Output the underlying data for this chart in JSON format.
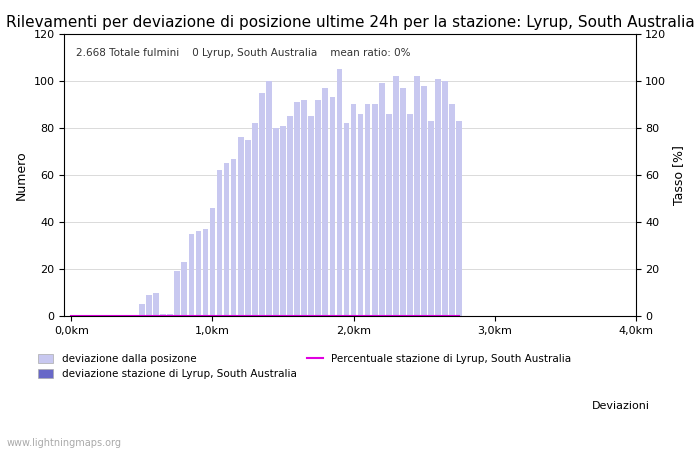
{
  "title": "Rilevamenti per deviazione di posizione ultime 24h per la stazione: Lyrup, South Australia",
  "subtitle": "2.668 Totale fulmini    0 Lyrup, South Australia    mean ratio: 0%",
  "ylabel_left": "Numero",
  "ylabel_right": "Tasso [%]",
  "xlabel_bottom": "Deviazioni",
  "watermark": "www.lightningmaps.org",
  "ylim": [
    0,
    120
  ],
  "xtick_labels": [
    "0,0km",
    "1,0km",
    "2,0km",
    "3,0km",
    "4,0km"
  ],
  "xtick_positions": [
    0,
    20,
    40,
    60,
    80
  ],
  "bar_values": [
    0,
    0,
    0,
    0,
    0,
    0,
    0,
    0,
    0,
    0,
    5,
    9,
    10,
    1,
    1,
    19,
    23,
    35,
    36,
    37,
    46,
    62,
    65,
    67,
    76,
    75,
    82,
    95,
    100,
    80,
    81,
    85,
    91,
    92,
    85,
    92,
    97,
    93,
    105,
    82,
    90,
    86,
    90,
    90,
    99,
    86,
    102,
    97,
    86,
    102,
    98,
    83,
    101,
    100,
    90,
    83
  ],
  "station_bar_values": [
    0,
    0,
    0,
    0,
    0,
    0,
    0,
    0,
    0,
    0,
    0,
    0,
    0,
    0,
    0,
    0,
    0,
    0,
    0,
    0,
    0,
    0,
    0,
    0,
    0,
    0,
    0,
    0,
    0,
    0,
    0,
    0,
    0,
    0,
    0,
    0,
    0,
    0,
    0,
    0,
    0,
    0,
    0,
    0,
    0,
    0,
    0,
    0,
    0,
    0,
    0,
    0,
    0,
    0,
    0,
    0
  ],
  "bar_color_light": "#c8c8f0",
  "bar_color_dark": "#6868c8",
  "line_color": "#e000e0",
  "background_color": "#ffffff",
  "grid_color": "#cccccc",
  "title_fontsize": 11,
  "legend1_label": "deviazione dalla posizone",
  "legend2_label": "deviazione stazione di Lyrup, South Australia",
  "legend3_label": "Percentuale stazione di Lyrup, South Australia"
}
